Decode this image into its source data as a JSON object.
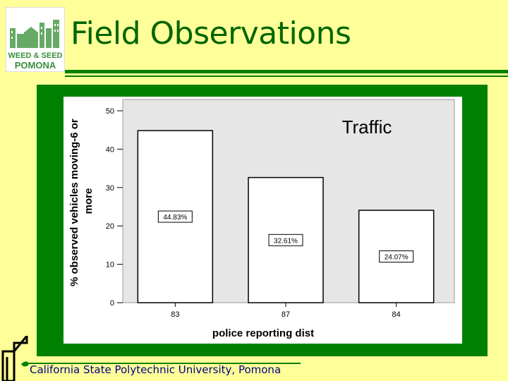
{
  "slide": {
    "title": "Field Observations",
    "footer": "California State Polytechnic University, Pomona"
  },
  "logo": {
    "line1": "WEED & SEED",
    "line2": "POMONA"
  },
  "colors": {
    "background": "#ffff99",
    "accent": "#008000",
    "title": "#006600",
    "plot_bg": "#e6e6e6",
    "footer_text": "#000080"
  },
  "chart_data": {
    "type": "bar",
    "title": "Traffic",
    "categories": [
      "83",
      "87",
      "84"
    ],
    "values": [
      44.83,
      32.61,
      24.07
    ],
    "data_labels": [
      "44.83%",
      "32.61%",
      "24.07%"
    ],
    "xlabel": "police reporting dist",
    "ylabel": "% observed vehicles moving-6 or more",
    "ylim": [
      0,
      50
    ],
    "yticks": [
      0,
      10,
      20,
      30,
      40,
      50
    ],
    "grid": false,
    "legend": "none"
  }
}
